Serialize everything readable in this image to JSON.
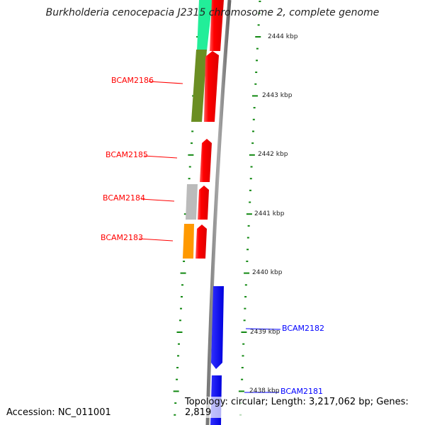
{
  "title": "Burkholderia cenocepacia J2315 chromosome 2, complete genome",
  "accession": "Accession: NC_011001",
  "summary": "Topology: circular; Length: 3,217,062 bp; Genes: 2,819",
  "kbp_labels": [
    "2444 kbp",
    "2443 kbp",
    "2442 kbp",
    "2441 kbp",
    "2440 kbp",
    "2439 kbp",
    "2438 kbp"
  ],
  "genes": {
    "forward_color": "#ff0000",
    "reverse_color": "#0000ff",
    "labels": [
      "BCAM2186",
      "BCAM2185",
      "BCAM2184",
      "BCAM2183",
      "BCAM2182",
      "BCAM2181"
    ]
  }
}
